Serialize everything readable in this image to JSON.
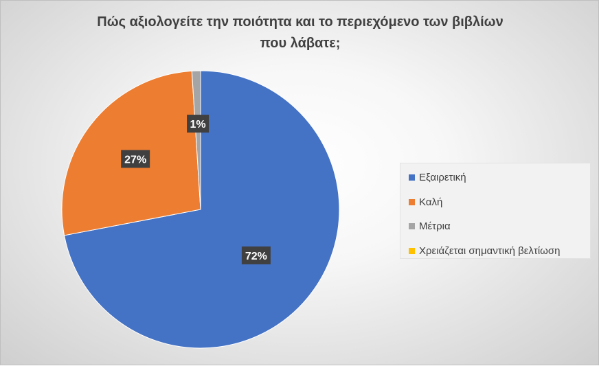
{
  "chart_data": {
    "type": "pie",
    "title": "Πώς αξιολογείτε την ποιότητα και το περιεχόμενο  των βιβλίων που λάβατε;",
    "title_lines": [
      "Πώς αξιολογείτε την ποιότητα και το περιεχόμενο  των βιβλίων",
      "που λάβατε;"
    ],
    "categories": [
      "Εξαιρετική",
      "Καλή",
      "Μέτρια",
      "Χρειάζεται σημαντική βελτίωση"
    ],
    "values": [
      72,
      27,
      1,
      0
    ],
    "data_labels": [
      "72%",
      "27%",
      "1%",
      ""
    ],
    "colors": [
      "#4472c4",
      "#ed7d31",
      "#a5a5a5",
      "#ffc000"
    ],
    "legend_position": "right"
  }
}
